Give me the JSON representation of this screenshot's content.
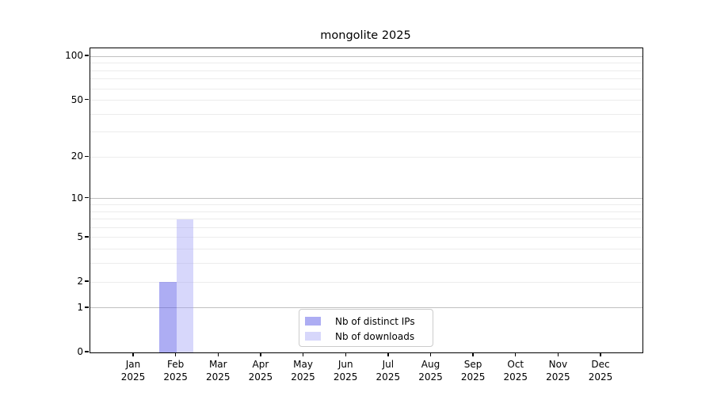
{
  "title": "mongolite 2025",
  "chart_data": {
    "type": "bar",
    "title": "mongolite 2025",
    "xlabel": "",
    "ylabel": "",
    "categories": [
      "Jan 2025",
      "Feb 2025",
      "Mar 2025",
      "Apr 2025",
      "May 2025",
      "Jun 2025",
      "Jul 2025",
      "Aug 2025",
      "Sep 2025",
      "Oct 2025",
      "Nov 2025",
      "Dec 2025"
    ],
    "series": [
      {
        "name": "Nb of distinct IPs",
        "values": [
          0,
          2,
          0,
          0,
          0,
          0,
          0,
          0,
          0,
          0,
          0,
          0
        ],
        "color": "rgba(80,80,230,0.47)"
      },
      {
        "name": "Nb of downloads",
        "values": [
          0,
          7,
          0,
          0,
          0,
          0,
          0,
          0,
          0,
          0,
          0,
          0
        ],
        "color": "rgba(160,160,245,0.42)"
      }
    ],
    "yscale": "log1p",
    "ylim": [
      0,
      113.5
    ],
    "yticks": [
      0,
      1,
      2,
      5,
      10,
      20,
      50,
      100
    ],
    "grid": true,
    "grid_major_values": [
      1,
      10,
      100
    ],
    "grid_minor_values": [
      2,
      3,
      4,
      6,
      7,
      8,
      9,
      20,
      30,
      40,
      50,
      60,
      70,
      80,
      90,
      5
    ],
    "legend_position": "lower center"
  },
  "colors": {
    "axis": "#000000",
    "major_grid": "#c0c0c0",
    "minor_grid": "#ececec",
    "background": "#ffffff"
  },
  "legend": {
    "items": [
      {
        "label": "Nb of distinct IPs",
        "swatch": "rgba(80,80,230,0.47)"
      },
      {
        "label": "Nb of downloads",
        "swatch": "rgba(160,160,245,0.42)"
      }
    ]
  }
}
